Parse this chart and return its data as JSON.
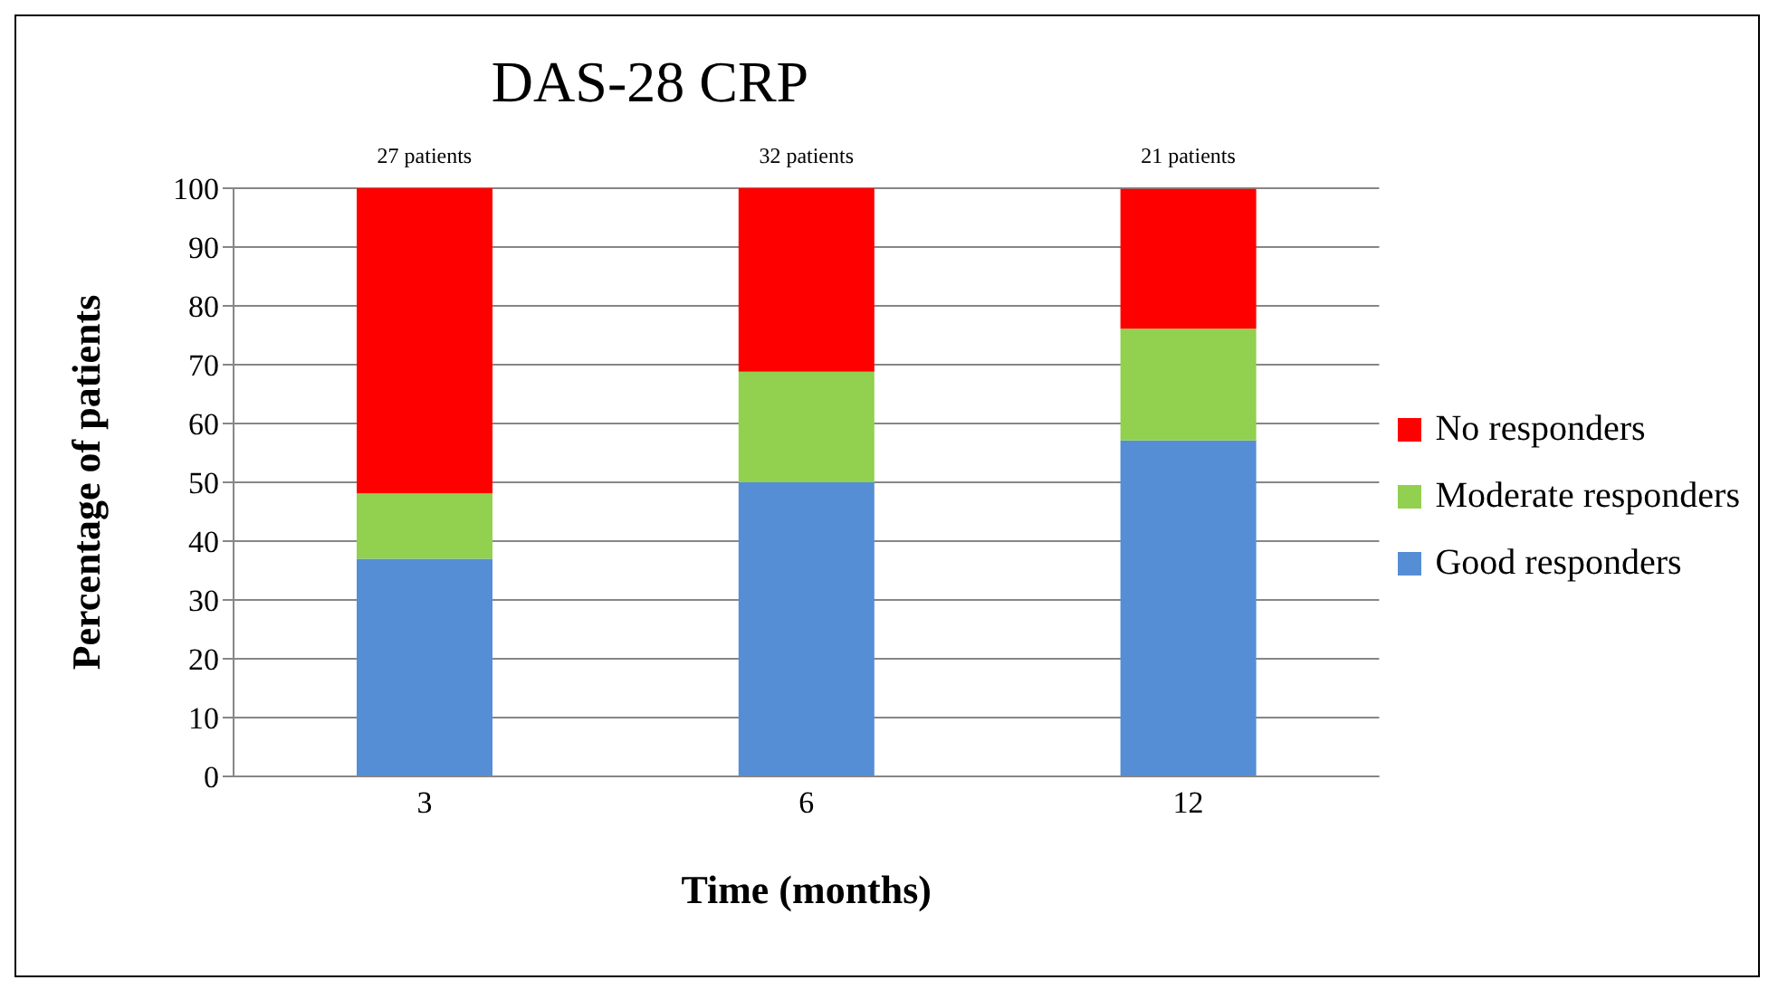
{
  "chart_data": {
    "type": "bar",
    "title": "DAS-28 CRP",
    "xlabel": "Time (months)",
    "ylabel": "Percentage of patients",
    "categories": [
      "3",
      "6",
      "12"
    ],
    "stacked": true,
    "series": [
      {
        "name": "Good responders",
        "color": "#558ed5",
        "values": [
          37,
          50,
          57.1
        ]
      },
      {
        "name": "Moderate responders",
        "color": "#92d050",
        "values": [
          11.1,
          18.8,
          19
        ]
      },
      {
        "name": "No responders",
        "color": "#ff0000",
        "values": [
          51.9,
          31.2,
          23.8
        ]
      }
    ],
    "ylim": [
      0,
      100
    ],
    "yticks": [
      0,
      10,
      20,
      30,
      40,
      50,
      60,
      70,
      80,
      90,
      100
    ],
    "grid": "y",
    "legend": "right",
    "annotations": [
      {
        "text": "27 patients",
        "x": "3",
        "y": 100
      },
      {
        "text": "32 patients",
        "x": "6",
        "y": 100
      },
      {
        "text": "21 patients",
        "x": "12",
        "y": 100
      }
    ]
  }
}
